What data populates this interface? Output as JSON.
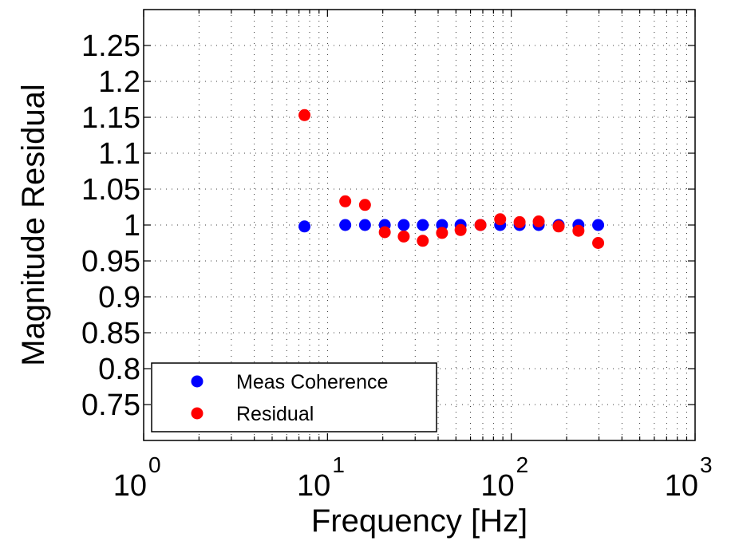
{
  "chart_data": {
    "type": "scatter",
    "xscale": "log",
    "xlim": [
      1,
      1000
    ],
    "ylim": [
      0.7,
      1.3
    ],
    "xlabel": "Frequency [Hz]",
    "ylabel": "Magnitude Residual",
    "title": "",
    "grid": true,
    "legend_position": "bottom-left",
    "x_ticks": [
      {
        "value": 1,
        "base": "10",
        "exp": "0"
      },
      {
        "value": 10,
        "base": "10",
        "exp": "1"
      },
      {
        "value": 100,
        "base": "10",
        "exp": "2"
      },
      {
        "value": 1000,
        "base": "10",
        "exp": "3"
      }
    ],
    "y_ticks": [
      {
        "value": 0.75,
        "label": "0.75"
      },
      {
        "value": 0.8,
        "label": "0.8"
      },
      {
        "value": 0.85,
        "label": "0.85"
      },
      {
        "value": 0.9,
        "label": "0.9"
      },
      {
        "value": 0.95,
        "label": "0.95"
      },
      {
        "value": 1.0,
        "label": "1"
      },
      {
        "value": 1.05,
        "label": "1.05"
      },
      {
        "value": 1.1,
        "label": "1.1"
      },
      {
        "value": 1.15,
        "label": "1.15"
      },
      {
        "value": 1.2,
        "label": "1.2"
      },
      {
        "value": 1.25,
        "label": "1.25"
      }
    ],
    "series": [
      {
        "name": "Meas Coherence",
        "color": "#0000ff",
        "points": [
          {
            "x": 7.5,
            "y": 0.998
          },
          {
            "x": 12.5,
            "y": 1.0
          },
          {
            "x": 16.0,
            "y": 1.0
          },
          {
            "x": 20.5,
            "y": 1.0
          },
          {
            "x": 26.0,
            "y": 1.0
          },
          {
            "x": 33.0,
            "y": 1.0
          },
          {
            "x": 42.0,
            "y": 1.0
          },
          {
            "x": 53.0,
            "y": 1.0
          },
          {
            "x": 68.0,
            "y": 1.0
          },
          {
            "x": 87.0,
            "y": 1.0
          },
          {
            "x": 111.0,
            "y": 1.0
          },
          {
            "x": 141.0,
            "y": 1.0
          },
          {
            "x": 181.0,
            "y": 1.0
          },
          {
            "x": 232.0,
            "y": 1.0
          },
          {
            "x": 297.0,
            "y": 1.0
          }
        ]
      },
      {
        "name": "Residual",
        "color": "#ff0000",
        "points": [
          {
            "x": 7.5,
            "y": 1.153
          },
          {
            "x": 12.5,
            "y": 1.033
          },
          {
            "x": 16.0,
            "y": 1.028
          },
          {
            "x": 20.5,
            "y": 0.99
          },
          {
            "x": 26.0,
            "y": 0.984
          },
          {
            "x": 33.0,
            "y": 0.978
          },
          {
            "x": 42.0,
            "y": 0.989
          },
          {
            "x": 53.0,
            "y": 0.993
          },
          {
            "x": 68.0,
            "y": 1.0
          },
          {
            "x": 87.0,
            "y": 1.008
          },
          {
            "x": 111.0,
            "y": 1.004
          },
          {
            "x": 141.0,
            "y": 1.005
          },
          {
            "x": 181.0,
            "y": 0.998
          },
          {
            "x": 232.0,
            "y": 0.992
          },
          {
            "x": 297.0,
            "y": 0.975
          }
        ]
      }
    ]
  }
}
